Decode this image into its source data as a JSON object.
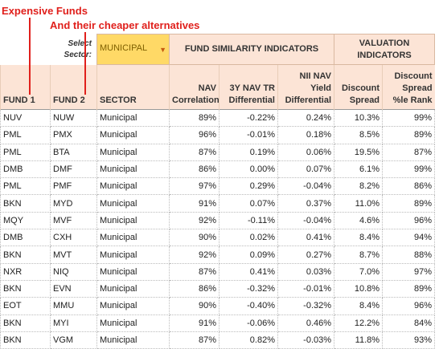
{
  "annotations": {
    "expensive": "Expensive Funds",
    "cheaper": "And their cheaper alternatives"
  },
  "selector": {
    "label": "Select Sector:",
    "value": "MUNICIPAL"
  },
  "table": {
    "groups": [
      "FUND SIMILARITY INDICATORS",
      "VALUATION INDICATORS"
    ],
    "columns": [
      "FUND 1",
      "FUND 2",
      "SECTOR",
      "NAV Correlation",
      "3Y NAV TR Differential",
      "NII NAV Yield Differential",
      "Discount Spread",
      "Discount Spread %le Rank"
    ],
    "rows": [
      [
        "NUV",
        "NUW",
        "Municipal",
        "89%",
        "-0.22%",
        "0.24%",
        "10.3%",
        "99%"
      ],
      [
        "PML",
        "PMX",
        "Municipal",
        "96%",
        "-0.01%",
        "0.18%",
        "8.5%",
        "89%"
      ],
      [
        "PML",
        "BTA",
        "Municipal",
        "87%",
        "0.19%",
        "0.06%",
        "19.5%",
        "87%"
      ],
      [
        "DMB",
        "DMF",
        "Municipal",
        "86%",
        "0.00%",
        "0.07%",
        "6.1%",
        "99%"
      ],
      [
        "PML",
        "PMF",
        "Municipal",
        "97%",
        "0.29%",
        "-0.04%",
        "8.2%",
        "86%"
      ],
      [
        "BKN",
        "MYD",
        "Municipal",
        "91%",
        "0.07%",
        "0.37%",
        "11.0%",
        "89%"
      ],
      [
        "MQY",
        "MVF",
        "Municipal",
        "92%",
        "-0.11%",
        "-0.04%",
        "4.6%",
        "96%"
      ],
      [
        "DMB",
        "CXH",
        "Municipal",
        "90%",
        "0.02%",
        "0.41%",
        "8.4%",
        "94%"
      ],
      [
        "BKN",
        "MVT",
        "Municipal",
        "92%",
        "0.09%",
        "0.27%",
        "8.7%",
        "88%"
      ],
      [
        "NXR",
        "NIQ",
        "Municipal",
        "87%",
        "0.41%",
        "0.03%",
        "7.0%",
        "97%"
      ],
      [
        "BKN",
        "EVN",
        "Municipal",
        "86%",
        "-0.32%",
        "-0.01%",
        "10.8%",
        "89%"
      ],
      [
        "EOT",
        "MMU",
        "Municipal",
        "90%",
        "-0.40%",
        "-0.32%",
        "8.4%",
        "96%"
      ],
      [
        "BKN",
        "MYI",
        "Municipal",
        "91%",
        "-0.06%",
        "0.46%",
        "12.2%",
        "84%"
      ],
      [
        "BKN",
        "VGM",
        "Municipal",
        "87%",
        "0.82%",
        "-0.03%",
        "11.8%",
        "93%"
      ]
    ]
  }
}
